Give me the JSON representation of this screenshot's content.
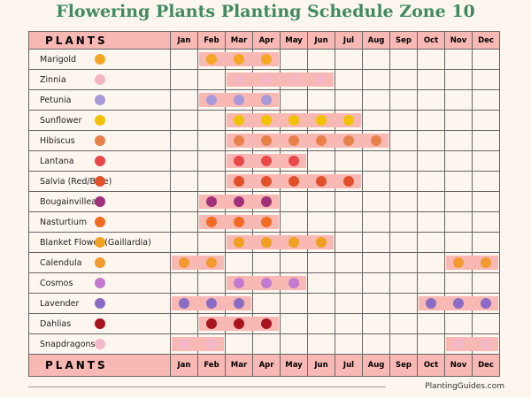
{
  "title": "Flowering Plants Planting Schedule Zone 10",
  "header_label": "PLANTS",
  "months": [
    "Jan",
    "Feb",
    "Mar",
    "Apr",
    "May",
    "Jun",
    "Jul",
    "Aug",
    "Sep",
    "Oct",
    "Nov",
    "Dec"
  ],
  "bar_color": "#f8b8b4",
  "plants": [
    {
      "name": "Marigold",
      "icon": "marigold-icon",
      "color": "#f5a623",
      "months": [
        2,
        3,
        4
      ]
    },
    {
      "name": "Zinnia",
      "icon": "zinnia-icon",
      "color": "#f4b6c2",
      "months": [
        3,
        4,
        5,
        6
      ]
    },
    {
      "name": "Petunia",
      "icon": "petunia-icon",
      "color": "#a89ad8",
      "months": [
        2,
        3,
        4
      ]
    },
    {
      "name": "Sunflower",
      "icon": "sunflower-icon",
      "color": "#f2c200",
      "months": [
        3,
        4,
        5,
        6,
        7
      ]
    },
    {
      "name": "Hibiscus",
      "icon": "hibiscus-icon",
      "color": "#e8804a",
      "months": [
        3,
        4,
        5,
        6,
        7,
        8
      ]
    },
    {
      "name": "Lantana",
      "icon": "lantana-icon",
      "color": "#e94848",
      "months": [
        3,
        4,
        5
      ]
    },
    {
      "name": "Salvia (Red/Blue)",
      "icon": "salvia-icon",
      "color": "#e2502a",
      "months": [
        3,
        4,
        5,
        6,
        7
      ]
    },
    {
      "name": "Bougainvillea",
      "icon": "bougainvillea-icon",
      "color": "#a0307a",
      "months": [
        2,
        3,
        4
      ]
    },
    {
      "name": "Nasturtium",
      "icon": "nasturtium-icon",
      "color": "#f26b22",
      "months": [
        2,
        3,
        4
      ]
    },
    {
      "name": "Blanket Flower (Gaillardia)",
      "icon": "blanket-flower-icon",
      "color": "#f0a020",
      "months": [
        3,
        4,
        5,
        6
      ]
    },
    {
      "name": "Calendula",
      "icon": "calendula-icon",
      "color": "#f29a2e",
      "months": [
        1,
        2,
        11,
        12
      ]
    },
    {
      "name": "Cosmos",
      "icon": "cosmos-icon",
      "color": "#c27ad0",
      "months": [
        3,
        4,
        5
      ]
    },
    {
      "name": "Lavender",
      "icon": "lavender-icon",
      "color": "#8b6cc4",
      "months": [
        1,
        2,
        3,
        10,
        11,
        12
      ]
    },
    {
      "name": "Dahlias",
      "icon": "dahlia-icon",
      "color": "#a8141e",
      "months": [
        2,
        3,
        4
      ]
    },
    {
      "name": "Snapdragons",
      "icon": "snapdragon-icon",
      "color": "#f3b8c8",
      "months": [
        1,
        2,
        11,
        12
      ]
    }
  ],
  "footer": {
    "site": "PlantingGuides.com"
  }
}
